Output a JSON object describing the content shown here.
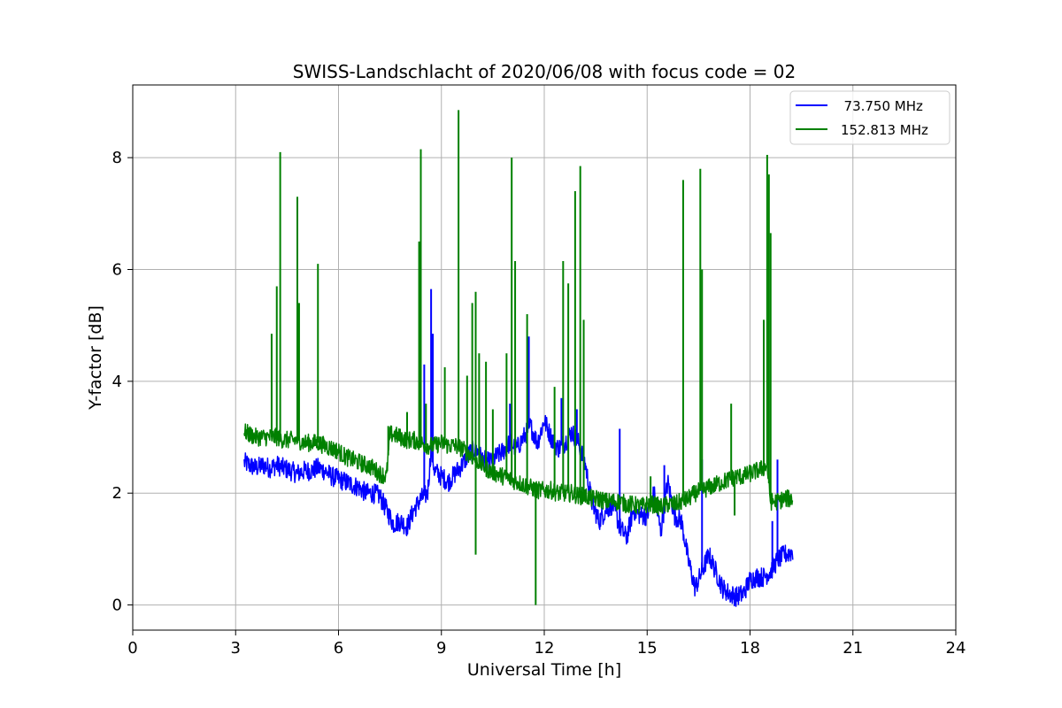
{
  "chart_data": {
    "type": "line",
    "title": "SWISS-Landschlacht of 2020/06/08 with focus code = 02",
    "xlabel": "Universal Time [h]",
    "ylabel": "Y-factor [dB]",
    "xlim": [
      0,
      24
    ],
    "ylim": [
      -0.45,
      9.3
    ],
    "xticks": [
      0,
      3,
      6,
      9,
      12,
      15,
      18,
      21,
      24
    ],
    "yticks": [
      0,
      2,
      4,
      6,
      8
    ],
    "grid": true,
    "legend_position": "top-right",
    "series": [
      {
        "name": "  73.750 MHz",
        "color": "#0000ff",
        "x": [
          3.25,
          3.4,
          3.6,
          3.8,
          4.0,
          4.2,
          4.4,
          4.6,
          4.8,
          5.0,
          5.2,
          5.4,
          5.6,
          5.8,
          6.0,
          6.2,
          6.4,
          6.6,
          6.8,
          7.0,
          7.2,
          7.4,
          7.6,
          7.8,
          8.0,
          8.2,
          8.4,
          8.6,
          8.7,
          8.8,
          9.0,
          9.2,
          9.4,
          9.6,
          9.8,
          10.0,
          10.2,
          10.4,
          10.6,
          10.8,
          11.0,
          11.2,
          11.4,
          11.6,
          11.8,
          12.0,
          12.2,
          12.4,
          12.6,
          12.8,
          13.0,
          13.2,
          13.4,
          13.6,
          13.8,
          14.0,
          14.2,
          14.4,
          14.6,
          14.8,
          15.0,
          15.2,
          15.4,
          15.6,
          15.8,
          16.0,
          16.2,
          16.4,
          16.6,
          16.8,
          17.0,
          17.2,
          17.4,
          17.6,
          17.8,
          18.0,
          18.2,
          18.4,
          18.6,
          18.8,
          19.0,
          19.25
        ],
        "y": [
          2.55,
          2.5,
          2.45,
          2.5,
          2.45,
          2.5,
          2.45,
          2.4,
          2.35,
          2.4,
          2.4,
          2.45,
          2.4,
          2.3,
          2.25,
          2.2,
          2.15,
          2.1,
          2.0,
          2.0,
          1.95,
          1.7,
          1.45,
          1.5,
          1.4,
          1.7,
          1.9,
          2.0,
          2.8,
          2.4,
          2.3,
          2.2,
          2.35,
          2.5,
          2.7,
          2.8,
          2.6,
          2.55,
          2.65,
          2.75,
          2.9,
          2.8,
          3.0,
          3.2,
          2.9,
          3.3,
          3.0,
          2.8,
          2.9,
          3.1,
          2.9,
          2.5,
          1.8,
          1.5,
          1.7,
          1.8,
          1.4,
          1.2,
          1.7,
          1.6,
          1.6,
          2.0,
          1.3,
          2.2,
          1.6,
          1.5,
          0.8,
          0.3,
          0.6,
          0.9,
          0.6,
          0.3,
          0.2,
          0.15,
          0.2,
          0.45,
          0.5,
          0.5,
          0.6,
          0.8,
          0.9,
          0.95
        ],
        "spikes": [
          [
            8.7,
            5.65
          ],
          [
            8.75,
            4.85
          ],
          [
            8.5,
            4.3
          ],
          [
            10.0,
            3.95
          ],
          [
            11.0,
            3.6
          ],
          [
            11.55,
            4.8
          ],
          [
            12.5,
            3.7
          ],
          [
            12.95,
            3.5
          ],
          [
            14.2,
            3.15
          ],
          [
            15.5,
            2.5
          ],
          [
            16.6,
            2.6
          ],
          [
            17.55,
            0.0
          ],
          [
            18.65,
            1.5
          ],
          [
            18.8,
            2.6
          ]
        ]
      },
      {
        "name": "152.813 MHz",
        "color": "#008000",
        "x": [
          3.25,
          3.4,
          3.6,
          3.8,
          4.0,
          4.2,
          4.4,
          4.6,
          4.8,
          5.0,
          5.2,
          5.4,
          5.6,
          5.8,
          6.0,
          6.2,
          6.4,
          6.6,
          6.8,
          7.0,
          7.2,
          7.4,
          7.5,
          7.6,
          7.8,
          8.0,
          8.2,
          8.4,
          8.6,
          8.8,
          9.0,
          9.2,
          9.4,
          9.6,
          9.8,
          10.0,
          10.2,
          10.4,
          10.6,
          10.8,
          11.0,
          11.2,
          11.4,
          11.6,
          11.8,
          12.0,
          12.2,
          12.4,
          12.6,
          12.8,
          13.0,
          13.2,
          13.4,
          13.6,
          13.8,
          14.0,
          14.2,
          14.4,
          14.6,
          14.8,
          15.0,
          15.2,
          15.4,
          15.6,
          15.8,
          16.0,
          16.2,
          16.4,
          16.6,
          16.8,
          17.0,
          17.2,
          17.4,
          17.6,
          17.8,
          18.0,
          18.2,
          18.4,
          18.5,
          18.6,
          18.8,
          19.0,
          19.25
        ],
        "y": [
          3.1,
          3.05,
          3.0,
          3.0,
          3.0,
          3.0,
          2.95,
          2.95,
          2.95,
          2.9,
          2.9,
          2.9,
          2.85,
          2.8,
          2.75,
          2.65,
          2.6,
          2.55,
          2.5,
          2.45,
          2.35,
          2.3,
          3.05,
          3.05,
          3.0,
          2.95,
          2.95,
          2.9,
          2.85,
          2.85,
          2.9,
          2.85,
          2.85,
          2.8,
          2.7,
          2.6,
          2.5,
          2.4,
          2.35,
          2.3,
          2.25,
          2.2,
          2.15,
          2.1,
          2.05,
          2.05,
          2.05,
          2.0,
          2.0,
          2.0,
          1.95,
          1.95,
          1.9,
          1.9,
          1.85,
          1.85,
          1.85,
          1.8,
          1.8,
          1.75,
          1.8,
          1.8,
          1.75,
          1.8,
          1.8,
          1.85,
          1.9,
          2.0,
          2.05,
          2.1,
          2.15,
          2.2,
          2.25,
          2.3,
          2.3,
          2.35,
          2.4,
          2.45,
          2.5,
          1.85,
          1.85,
          1.9,
          1.9
        ],
        "spikes": [
          [
            4.05,
            4.85
          ],
          [
            4.2,
            5.7
          ],
          [
            4.3,
            8.1
          ],
          [
            4.8,
            7.3
          ],
          [
            4.85,
            5.4
          ],
          [
            5.4,
            6.1
          ],
          [
            7.45,
            3.2
          ],
          [
            8.0,
            3.45
          ],
          [
            8.35,
            6.5
          ],
          [
            8.4,
            8.15
          ],
          [
            8.55,
            3.6
          ],
          [
            9.1,
            4.25
          ],
          [
            9.5,
            8.85
          ],
          [
            9.75,
            4.1
          ],
          [
            9.9,
            5.4
          ],
          [
            10.0,
            5.6
          ],
          [
            10.0,
            0.9
          ],
          [
            10.1,
            4.5
          ],
          [
            10.3,
            4.35
          ],
          [
            10.5,
            3.5
          ],
          [
            10.9,
            4.5
          ],
          [
            11.05,
            8.0
          ],
          [
            11.15,
            6.15
          ],
          [
            11.5,
            5.2
          ],
          [
            11.75,
            0.0
          ],
          [
            12.3,
            3.9
          ],
          [
            12.55,
            6.15
          ],
          [
            12.7,
            5.75
          ],
          [
            12.9,
            7.4
          ],
          [
            13.05,
            7.85
          ],
          [
            13.15,
            5.1
          ],
          [
            15.1,
            2.3
          ],
          [
            16.05,
            7.6
          ],
          [
            16.55,
            7.8
          ],
          [
            16.6,
            6.0
          ],
          [
            17.45,
            3.6
          ],
          [
            17.55,
            1.6
          ],
          [
            18.4,
            5.1
          ],
          [
            18.5,
            8.05
          ],
          [
            18.55,
            7.7
          ],
          [
            18.6,
            6.65
          ]
        ]
      }
    ]
  }
}
